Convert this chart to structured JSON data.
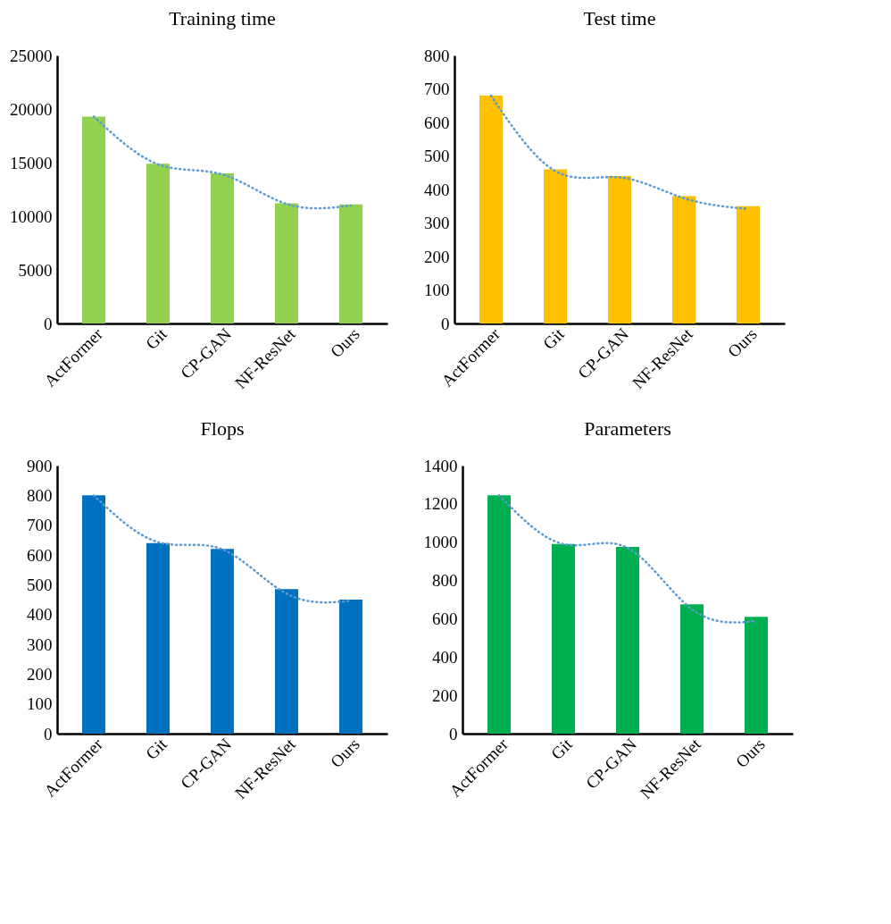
{
  "chart_data": [
    {
      "type": "bar",
      "title": "Training time",
      "categories": [
        "ActFormer",
        "Git",
        "CP-GAN",
        "NF-ResNet",
        "Ours"
      ],
      "ylim": [
        0,
        25000
      ],
      "yticks": [
        0,
        5000,
        10000,
        15000,
        20000,
        25000
      ],
      "grid": false,
      "series": [
        {
          "color": "#92d050",
          "values": [
            19300,
            14900,
            14000,
            11200,
            11100
          ]
        },
        {
          "type": "line",
          "color": "#5b9bd5",
          "line_style": "dotted",
          "values": [
            19300,
            14850,
            13900,
            11150,
            11000
          ]
        }
      ]
    },
    {
      "type": "bar",
      "title": "Test time",
      "categories": [
        "ActFormer",
        "Git",
        "CP-GAN",
        "NF-ResNet",
        "Ours"
      ],
      "ylim": [
        0,
        800
      ],
      "yticks": [
        0,
        100,
        200,
        300,
        400,
        500,
        600,
        700,
        800
      ],
      "grid": false,
      "series": [
        {
          "color": "#ffc000",
          "values": [
            680,
            460,
            440,
            380,
            350
          ]
        },
        {
          "type": "line",
          "color": "#5b9bd5",
          "line_style": "dotted",
          "values": [
            680,
            455,
            436,
            374,
            342
          ]
        }
      ]
    },
    {
      "type": "bar",
      "title": "Flops",
      "categories": [
        "ActFormer",
        "Git",
        "CP-GAN",
        "NF-ResNet",
        "Ours"
      ],
      "ylim": [
        0,
        900
      ],
      "yticks": [
        0,
        100,
        200,
        300,
        400,
        500,
        600,
        700,
        800,
        900
      ],
      "grid": false,
      "series": [
        {
          "color": "#0070c0",
          "values": [
            800,
            640,
            620,
            485,
            450
          ]
        },
        {
          "type": "line",
          "color": "#5b9bd5",
          "line_style": "dotted",
          "values": [
            800,
            643,
            619,
            470,
            446
          ]
        }
      ]
    },
    {
      "type": "bar",
      "title": "Parameters",
      "categories": [
        "ActFormer",
        "Git",
        "CP-GAN",
        "NF-ResNet",
        "Ours"
      ],
      "ylim": [
        0,
        1400
      ],
      "yticks": [
        0,
        200,
        400,
        600,
        800,
        1000,
        1200,
        1400
      ],
      "grid": false,
      "series": [
        {
          "color": "#00b050",
          "values": [
            1245,
            990,
            975,
            675,
            610
          ]
        },
        {
          "type": "line",
          "color": "#5b9bd5",
          "line_style": "dotted",
          "values": [
            1245,
            990,
            970,
            650,
            588
          ]
        }
      ]
    }
  ]
}
